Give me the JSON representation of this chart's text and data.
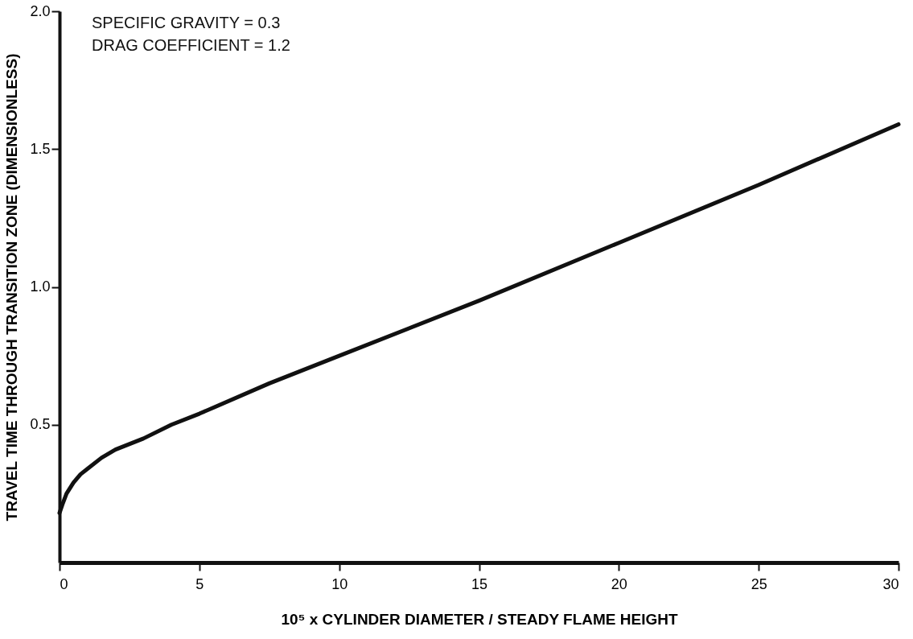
{
  "chart_data": {
    "type": "line",
    "xlabel": "10⁵ x CYLINDER DIAMETER / STEADY FLAME HEIGHT",
    "ylabel": "TRAVEL TIME THROUGH TRANSITION ZONE (DIMENSIONLESS)",
    "annotations": [
      "SPECIFIC GRAVITY = 0.3",
      "DRAG COEFFICIENT = 1.2"
    ],
    "x": [
      0,
      0.1,
      0.25,
      0.5,
      0.75,
      1,
      1.5,
      2,
      3,
      4,
      5,
      7.5,
      10,
      15,
      20,
      25,
      30
    ],
    "series": [
      {
        "color": "#111111",
        "values": [
          0.18,
          0.21,
          0.25,
          0.29,
          0.32,
          0.34,
          0.38,
          0.41,
          0.45,
          0.5,
          0.54,
          0.65,
          0.75,
          0.95,
          1.16,
          1.37,
          1.59
        ]
      }
    ],
    "xlim": [
      0,
      30
    ],
    "xticks": [
      0,
      5,
      10,
      15,
      20,
      25,
      30
    ],
    "ylim": [
      0,
      2
    ],
    "yticks": [
      {
        "value": 0.5,
        "label": "0.5"
      },
      {
        "value": 1,
        "label": "1.0"
      },
      {
        "value": 1.5,
        "label": "1.5"
      },
      {
        "value": 2,
        "label": "2.0"
      }
    ],
    "grid": false,
    "marker": "none",
    "line_style": "solid"
  }
}
